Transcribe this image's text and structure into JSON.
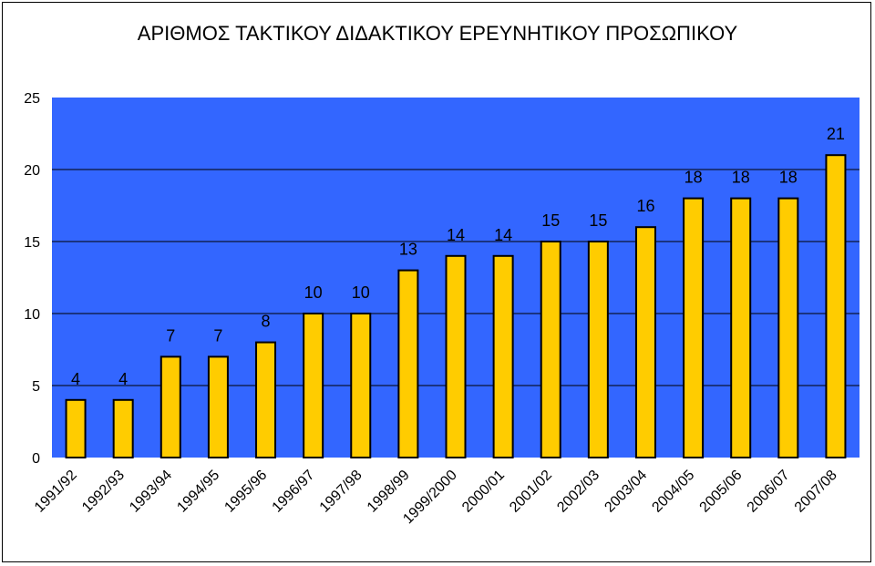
{
  "chart_data": {
    "type": "bar",
    "title": "ΑΡΙΘΜΟΣ ΤΑΚΤΙΚΟΥ ΔΙΔΑΚΤΙΚΟΥ ΕΡΕΥΝΗΤΙΚΟΥ ΠΡΟΣΩΠΙΚΟΥ",
    "xlabel": "",
    "ylabel": "",
    "categories": [
      "1991/92",
      "1992/93",
      "1993/94",
      "1994/95",
      "1995/96",
      "1996/97",
      "1997/98",
      "1998/99",
      "1999/2000",
      "2000/01",
      "2001/02",
      "2002/03",
      "2003/04",
      "2004/05",
      "2005/06",
      "2006/07",
      "2007/08"
    ],
    "values": [
      4,
      4,
      7,
      7,
      8,
      10,
      10,
      13,
      14,
      14,
      15,
      15,
      16,
      18,
      18,
      18,
      21
    ],
    "ylim": [
      0,
      25
    ],
    "yticks": [
      0,
      5,
      10,
      15,
      20,
      25
    ],
    "grid": true,
    "legend": "none",
    "data_labels": true,
    "colors": {
      "plot_area": "#3366FF",
      "bar_fill": "#FFCC00",
      "bar_stroke": "#000000",
      "gridline": "#000000"
    }
  }
}
